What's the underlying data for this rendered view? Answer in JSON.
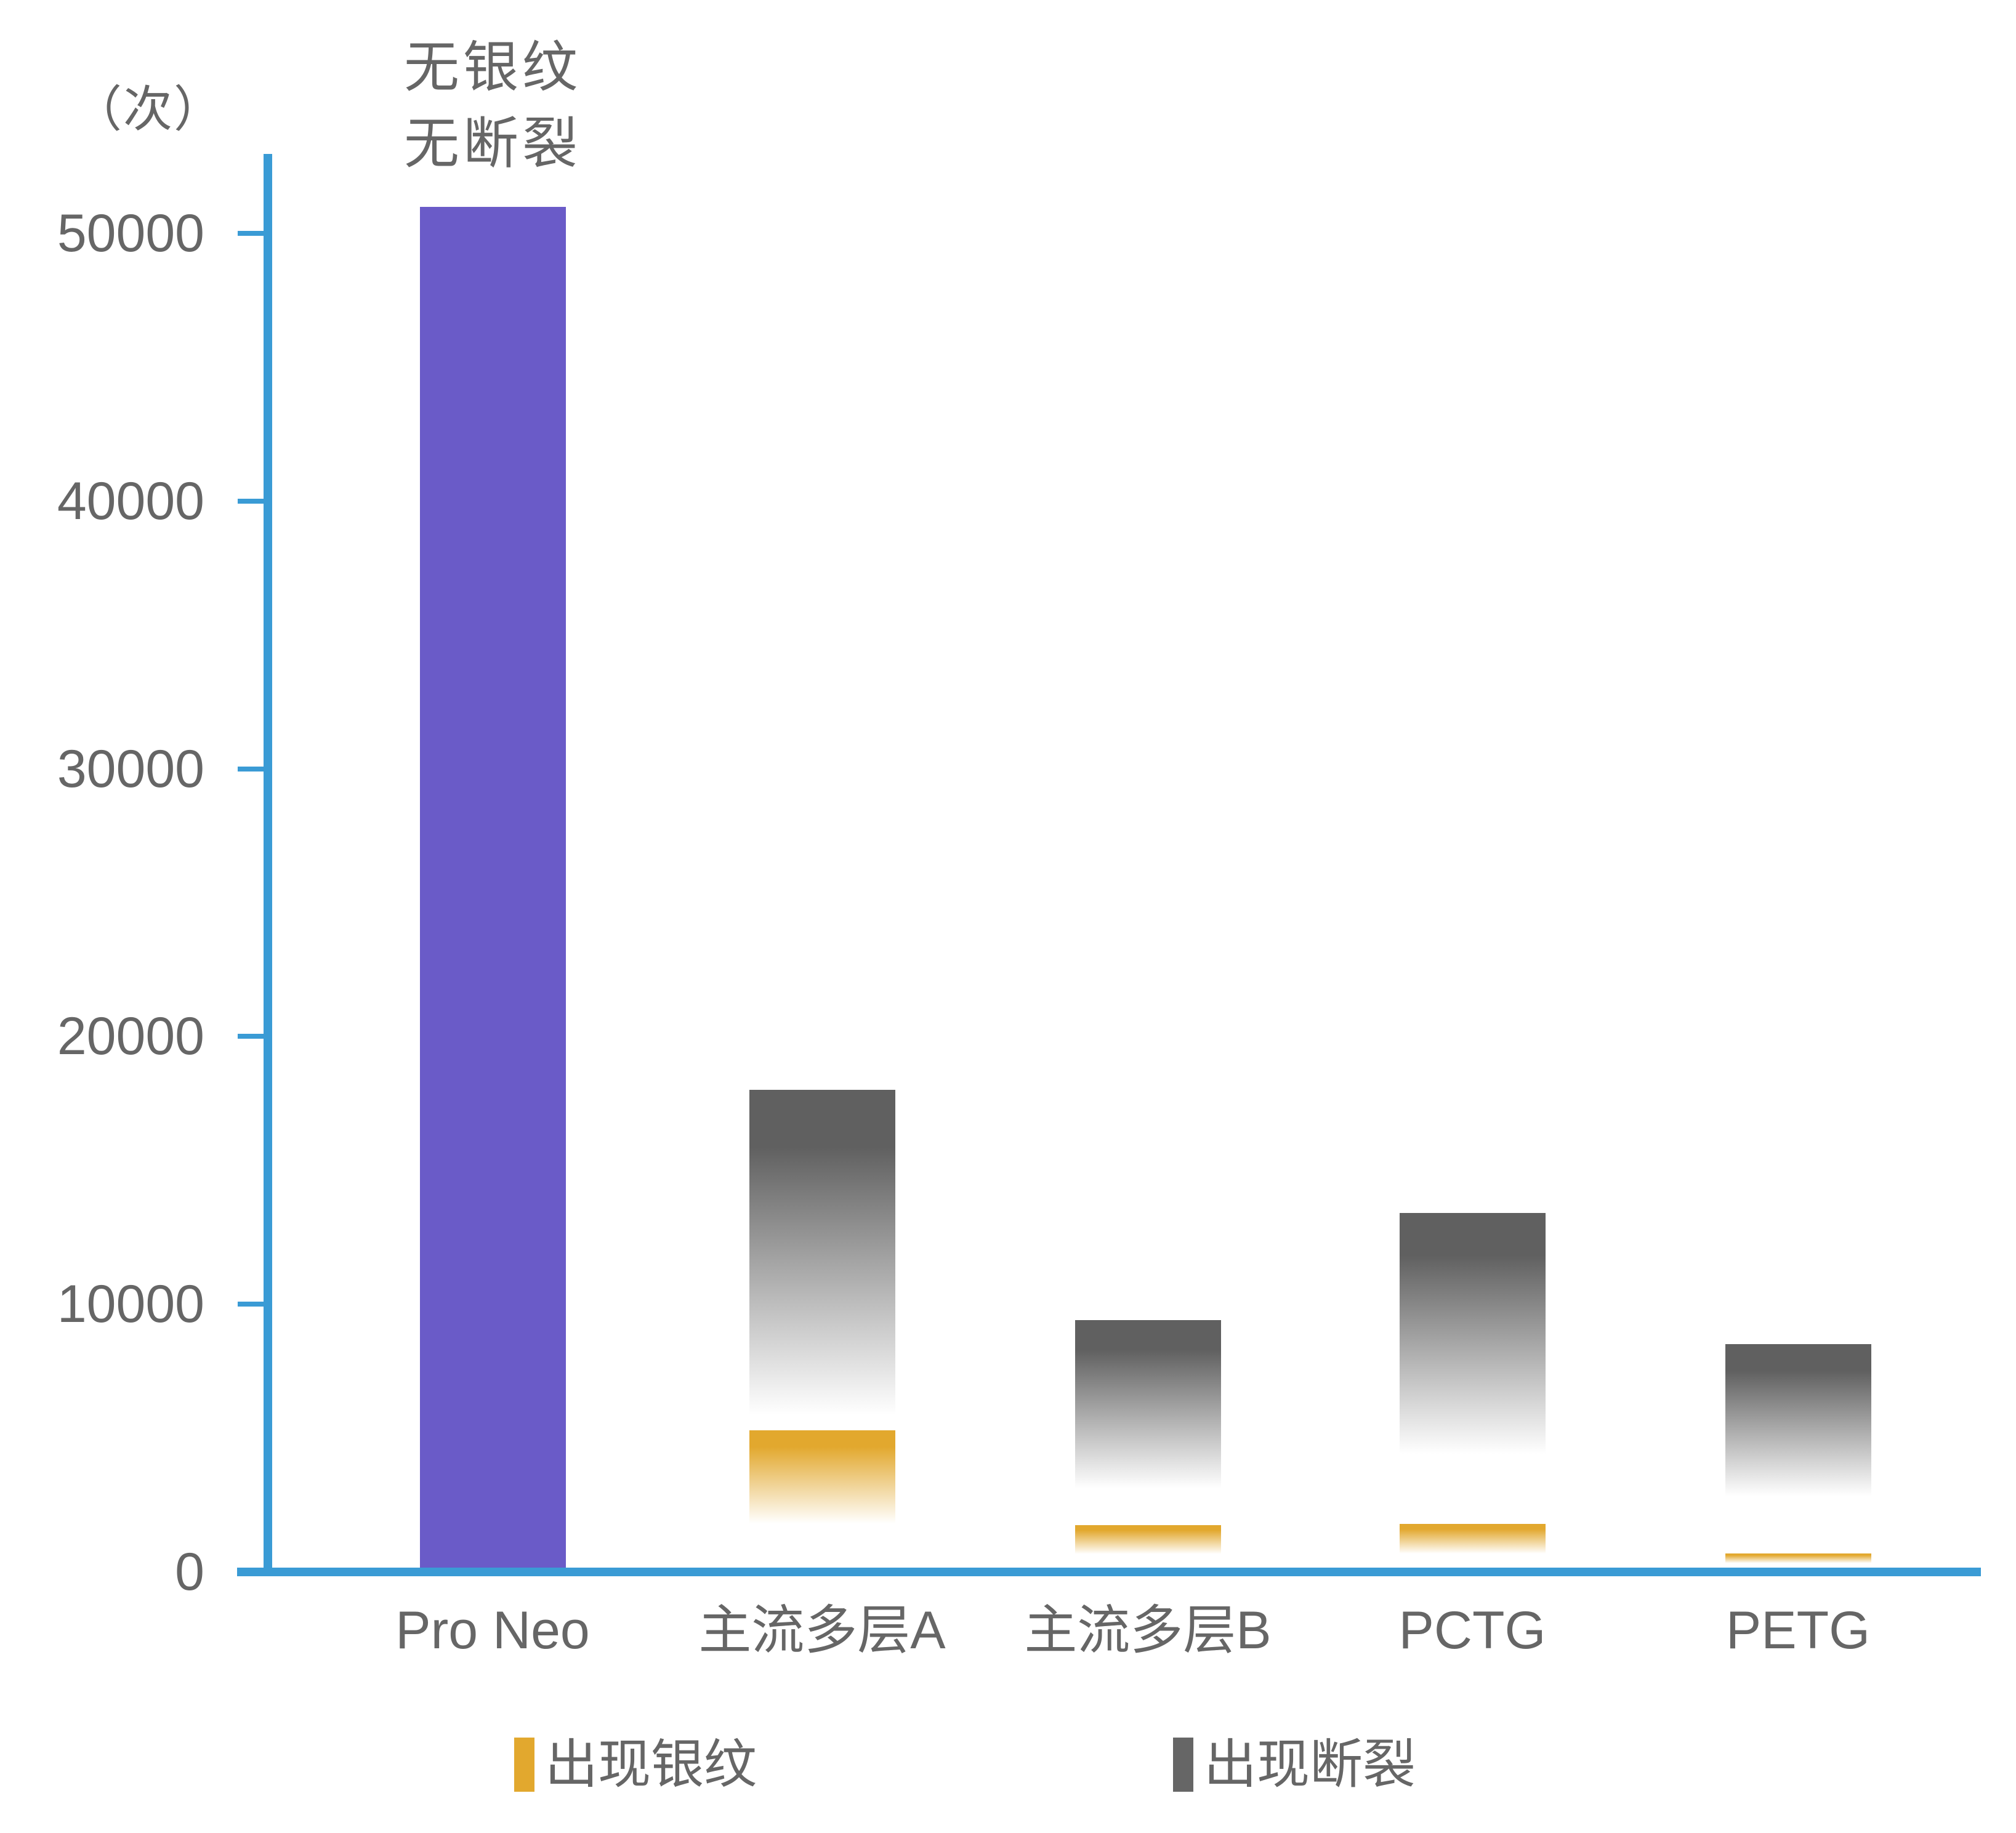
{
  "chart_data": {
    "type": "bar",
    "title": "",
    "unit_label": "（次）",
    "categories": [
      "Pro Neo",
      "主流多层A",
      "主流多层B",
      "PCTG",
      "PETG"
    ],
    "yticks": [
      0,
      10000,
      20000,
      30000,
      40000,
      50000
    ],
    "ylim": [
      0,
      51500
    ],
    "grid": false,
    "legend_position": "bottom",
    "series": [
      {
        "name": "出现银纹",
        "color": "#E2A82E",
        "style": "gradient-fade",
        "values": [
          null,
          5300,
          1750,
          1800,
          700
        ]
      },
      {
        "name": "出现断裂",
        "color": "#606060",
        "style": "gradient-fade",
        "values": [
          null,
          18000,
          9400,
          13400,
          8500
        ]
      },
      {
        "name": "无银纹无断裂",
        "color": "#6A5BC8",
        "style": "solid",
        "values": [
          51000,
          null,
          null,
          null,
          null
        ]
      }
    ],
    "annotation": {
      "line1": "无银纹",
      "line2": "无断裂",
      "category": "Pro Neo"
    },
    "legend": [
      {
        "label": "出现银纹",
        "color": "#E2A82E"
      },
      {
        "label": "出现断裂",
        "color": "#666666"
      }
    ],
    "axis_color": "#3A9BD5",
    "text_color": "#666666"
  }
}
